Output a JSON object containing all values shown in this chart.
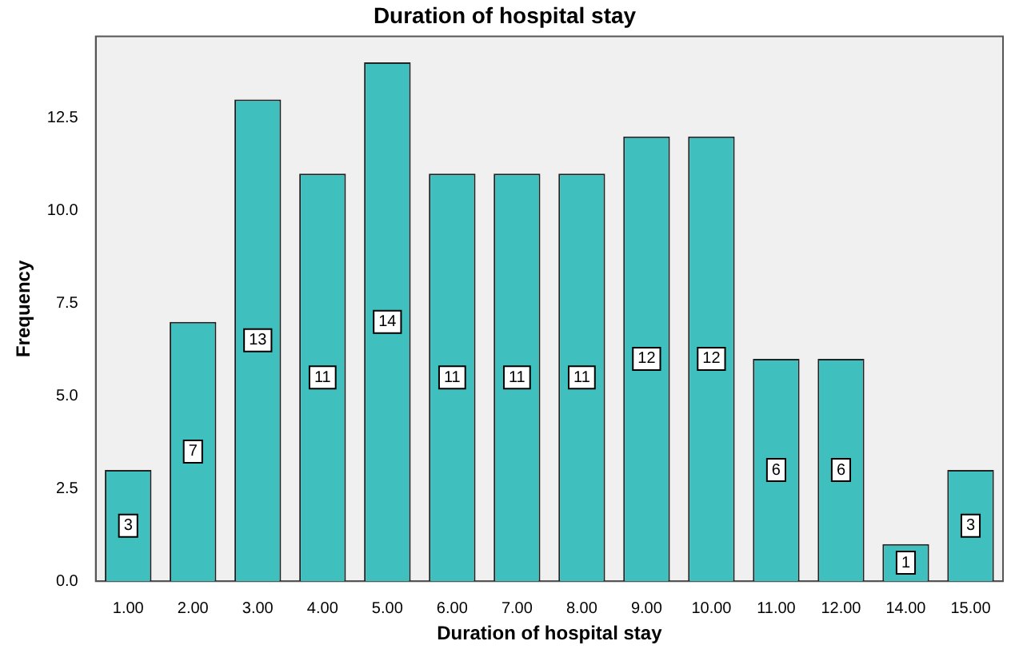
{
  "chart_data": {
    "type": "bar",
    "title": "Duration of hospital stay",
    "xlabel": "Duration of hospital stay",
    "ylabel": "Frequency",
    "categories": [
      "1.00",
      "2.00",
      "3.00",
      "4.00",
      "5.00",
      "6.00",
      "7.00",
      "8.00",
      "9.00",
      "10.00",
      "11.00",
      "12.00",
      "14.00",
      "15.00"
    ],
    "values": [
      3,
      7,
      13,
      11,
      14,
      11,
      11,
      11,
      12,
      12,
      6,
      6,
      1,
      3
    ],
    "color": "#40bfbf",
    "ylim": [
      0,
      14.7
    ],
    "yticks": [
      {
        "value": 0,
        "label": "0.0"
      },
      {
        "value": 2.5,
        "label": "2.5"
      },
      {
        "value": 5,
        "label": "5.0"
      },
      {
        "value": 7.5,
        "label": "7.5"
      },
      {
        "value": 10,
        "label": "10.0"
      },
      {
        "value": 12.5,
        "label": "12.5"
      }
    ],
    "grid": false,
    "legend": false,
    "data_labels": true
  }
}
